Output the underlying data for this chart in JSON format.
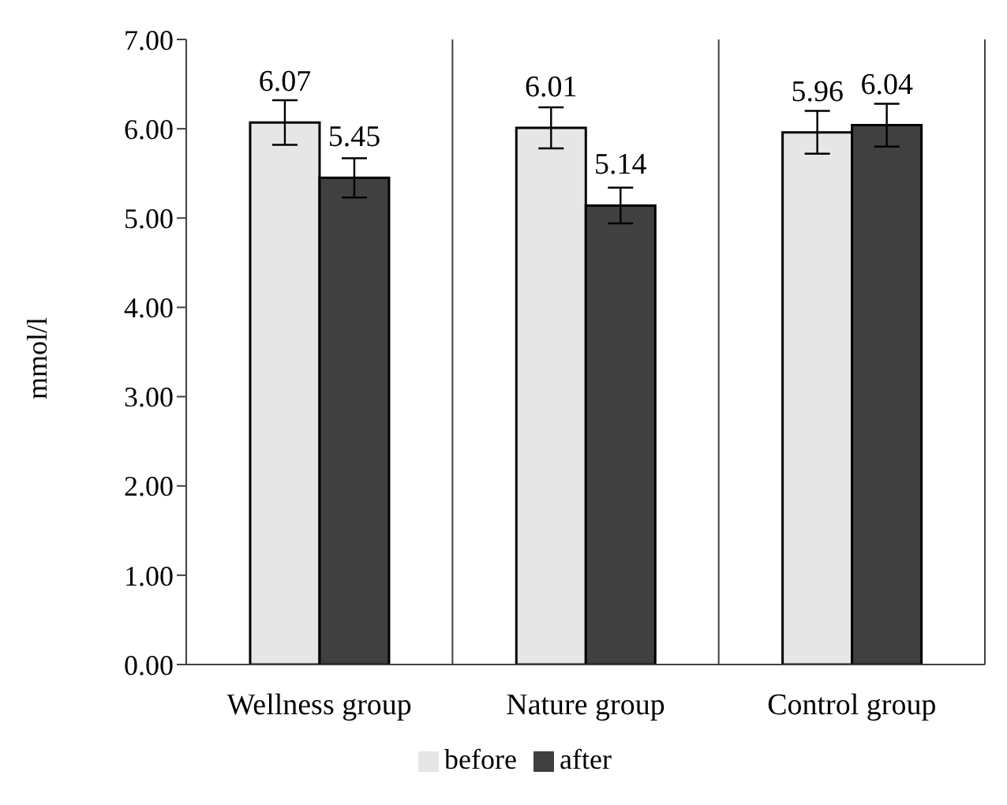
{
  "chart_data": {
    "type": "bar",
    "ylabel": "mmol/l",
    "categories": [
      "Wellness group",
      "Nature group",
      "Control group"
    ],
    "series": [
      {
        "name": "before",
        "color": "#e6e6e6",
        "values": [
          6.07,
          6.01,
          5.96
        ],
        "errors": [
          0.25,
          0.23,
          0.24
        ]
      },
      {
        "name": "after",
        "color": "#404040",
        "values": [
          5.45,
          5.14,
          6.04
        ],
        "errors": [
          0.22,
          0.2,
          0.24
        ]
      }
    ],
    "ylim": [
      0,
      7
    ],
    "yticks": [
      {
        "value": 0,
        "label": "0.00"
      },
      {
        "value": 1,
        "label": "1.00"
      },
      {
        "value": 2,
        "label": "2.00"
      },
      {
        "value": 3,
        "label": "3.00"
      },
      {
        "value": 4,
        "label": "4.00"
      },
      {
        "value": 5,
        "label": "5.00"
      },
      {
        "value": 6,
        "label": "6.00"
      },
      {
        "value": 7,
        "label": "7.00"
      }
    ],
    "grid": "x",
    "legend": "bottom",
    "data_labels": true
  }
}
